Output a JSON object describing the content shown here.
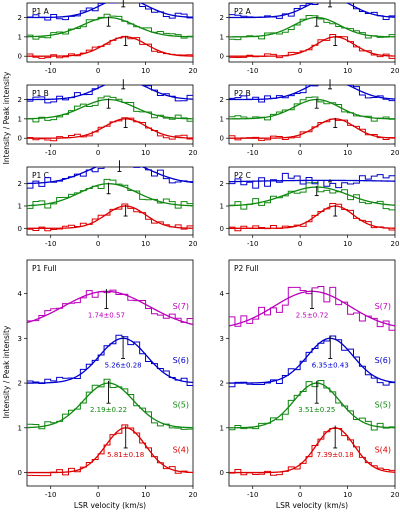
{
  "colors": {
    "S(4)": "#dd0000",
    "S(5)": "#118811",
    "S(6)": "#0000cc",
    "S(7)": "#bb00bb"
  },
  "chart_data": [
    {
      "type": "line",
      "title": "P1 A",
      "xlim": [
        -15,
        20
      ],
      "ylim": [
        -0.3,
        2.75
      ],
      "xticks": [
        -10,
        0,
        10,
        20
      ],
      "yticks": [
        0,
        1,
        2
      ],
      "xlabel": "",
      "ylabel": "",
      "series": [
        {
          "line": "S(4)",
          "offset": 0,
          "center": 5.8,
          "sigma": 4.4,
          "amp": 1.0,
          "noise": 0.14,
          "seed": 11,
          "marker": 5.8
        },
        {
          "line": "S(5)",
          "offset": 1,
          "center": 2.2,
          "sigma": 5.5,
          "amp": 1.0,
          "noise": 0.17,
          "seed": 12,
          "marker": 2.2
        },
        {
          "line": "S(6)",
          "offset": 2,
          "center": 5.3,
          "sigma": 5.0,
          "amp": 1.0,
          "noise": 0.18,
          "seed": 13,
          "marker": 5.3
        }
      ]
    },
    {
      "type": "line",
      "title": "P2 A",
      "xlim": [
        -15,
        20
      ],
      "ylim": [
        -0.3,
        2.75
      ],
      "xticks": [
        -10,
        0,
        10,
        20
      ],
      "yticks": [
        0,
        1,
        2
      ],
      "xlabel": "",
      "ylabel": "",
      "series": [
        {
          "line": "S(4)",
          "offset": 0,
          "center": 7.4,
          "sigma": 4.0,
          "amp": 1.0,
          "noise": 0.13,
          "seed": 21,
          "marker": 7.4
        },
        {
          "line": "S(5)",
          "offset": 1,
          "center": 3.5,
          "sigma": 4.8,
          "amp": 1.0,
          "noise": 0.16,
          "seed": 22,
          "marker": 3.5
        },
        {
          "line": "S(6)",
          "offset": 2,
          "center": 6.3,
          "sigma": 4.8,
          "amp": 1.0,
          "noise": 0.17,
          "seed": 23,
          "marker": 6.3
        }
      ]
    },
    {
      "type": "line",
      "title": "P1 B",
      "xlim": [
        -15,
        20
      ],
      "ylim": [
        -0.3,
        2.75
      ],
      "xticks": [
        -10,
        0,
        10,
        20
      ],
      "yticks": [
        0,
        1,
        2
      ],
      "xlabel": "",
      "ylabel": "",
      "series": [
        {
          "line": "S(4)",
          "offset": 0,
          "center": 5.8,
          "sigma": 4.4,
          "amp": 1.0,
          "noise": 0.14,
          "seed": 31,
          "marker": 5.8
        },
        {
          "line": "S(5)",
          "offset": 1,
          "center": 2.2,
          "sigma": 5.5,
          "amp": 1.0,
          "noise": 0.18,
          "seed": 32,
          "marker": 2.2
        },
        {
          "line": "S(6)",
          "offset": 2,
          "center": 5.3,
          "sigma": 5.2,
          "amp": 1.0,
          "noise": 0.2,
          "seed": 33,
          "marker": 5.3
        }
      ]
    },
    {
      "type": "line",
      "title": "P2 B",
      "xlim": [
        -15,
        20
      ],
      "ylim": [
        -0.3,
        2.75
      ],
      "xticks": [
        -10,
        0,
        10,
        20
      ],
      "yticks": [
        0,
        1,
        2
      ],
      "xlabel": "",
      "ylabel": "",
      "series": [
        {
          "line": "S(4)",
          "offset": 0,
          "center": 7.4,
          "sigma": 4.0,
          "amp": 1.0,
          "noise": 0.13,
          "seed": 41,
          "marker": 7.4
        },
        {
          "line": "S(5)",
          "offset": 1,
          "center": 3.5,
          "sigma": 4.8,
          "amp": 1.0,
          "noise": 0.17,
          "seed": 42,
          "marker": 3.5
        },
        {
          "line": "S(6)",
          "offset": 2,
          "center": 6.3,
          "sigma": 5.0,
          "amp": 1.0,
          "noise": 0.19,
          "seed": 43,
          "marker": 6.3
        }
      ]
    },
    {
      "type": "line",
      "title": "P1 C",
      "xlim": [
        -15,
        20
      ],
      "ylim": [
        -0.3,
        2.75
      ],
      "xticks": [
        -10,
        0,
        10,
        20
      ],
      "yticks": [
        0,
        1,
        2
      ],
      "xlabel": "",
      "ylabel": "",
      "series": [
        {
          "line": "S(4)",
          "offset": 0,
          "center": 5.8,
          "sigma": 4.2,
          "amp": 1.0,
          "noise": 0.13,
          "seed": 51,
          "marker": 5.8
        },
        {
          "line": "S(5)",
          "offset": 1,
          "center": 2.2,
          "sigma": 6.0,
          "amp": 1.0,
          "noise": 0.2,
          "seed": 52,
          "marker": 2.2
        },
        {
          "line": "S(6)",
          "offset": 2,
          "center": 4.5,
          "sigma": 6.5,
          "amp": 1.0,
          "noise": 0.22,
          "seed": 53,
          "marker": 4.5
        }
      ]
    },
    {
      "type": "line",
      "title": "P2 C",
      "xlim": [
        -15,
        20
      ],
      "ylim": [
        -0.3,
        2.75
      ],
      "xticks": [
        -10,
        0,
        10,
        20
      ],
      "yticks": [
        0,
        1,
        2
      ],
      "xlabel": "",
      "ylabel": "",
      "series": [
        {
          "line": "S(4)",
          "offset": 0,
          "center": 7.4,
          "sigma": 3.8,
          "amp": 1.0,
          "noise": 0.13,
          "seed": 61,
          "marker": 7.4
        },
        {
          "line": "S(5)",
          "offset": 1,
          "center": 3.5,
          "sigma": 6.5,
          "amp": 0.85,
          "noise": 0.22,
          "seed": 62,
          "marker": 3.5
        },
        {
          "line": "S(6)",
          "offset": 2,
          "center": 5.0,
          "sigma": 20.0,
          "amp": 0.15,
          "noise": 0.35,
          "seed": 63,
          "marker": 6.3
        }
      ]
    },
    {
      "type": "line",
      "title": "P1 Full",
      "xlim": [
        -15,
        20
      ],
      "ylim": [
        -0.3,
        4.75
      ],
      "xticks": [
        -10,
        0,
        10,
        20
      ],
      "yticks": [
        0,
        1,
        2,
        3,
        4
      ],
      "xlabel": "LSR velocity (km/s)",
      "ylabel": "",
      "series": [
        {
          "line": "S(4)",
          "offset": 0,
          "center": 5.81,
          "sigma": 4.2,
          "amp": 1.0,
          "noise": 0.07,
          "seed": 71,
          "marker": 5.81,
          "annotation": "5.81±0.18"
        },
        {
          "line": "S(5)",
          "offset": 1,
          "center": 2.19,
          "sigma": 5.3,
          "amp": 1.0,
          "noise": 0.09,
          "seed": 72,
          "marker": 2.19,
          "annotation": "2.19±0.22"
        },
        {
          "line": "S(6)",
          "offset": 2,
          "center": 5.26,
          "sigma": 5.0,
          "amp": 1.0,
          "noise": 0.1,
          "seed": 73,
          "marker": 5.26,
          "annotation": "5.26±0.28"
        },
        {
          "line": "S(7)",
          "offset": 3.2,
          "center": 1.74,
          "sigma": 9.0,
          "amp": 0.85,
          "noise": 0.13,
          "seed": 74,
          "marker": 1.74,
          "annotation": "1.74±0.57"
        }
      ]
    },
    {
      "type": "line",
      "title": "P2 Full",
      "xlim": [
        -15,
        20
      ],
      "ylim": [
        -0.3,
        4.75
      ],
      "xticks": [
        -10,
        0,
        10,
        20
      ],
      "yticks": [
        0,
        1,
        2,
        3,
        4
      ],
      "xlabel": "LSR velocity (km/s)",
      "ylabel": "",
      "series": [
        {
          "line": "S(4)",
          "offset": 0,
          "center": 7.39,
          "sigma": 4.0,
          "amp": 1.0,
          "noise": 0.07,
          "seed": 81,
          "marker": 7.39,
          "annotation": "7.39±0.18"
        },
        {
          "line": "S(5)",
          "offset": 1,
          "center": 3.51,
          "sigma": 4.8,
          "amp": 1.0,
          "noise": 0.09,
          "seed": 82,
          "marker": 3.51,
          "annotation": "3.51±0.25"
        },
        {
          "line": "S(6)",
          "offset": 2,
          "center": 6.35,
          "sigma": 4.8,
          "amp": 1.0,
          "noise": 0.1,
          "seed": 83,
          "marker": 6.35,
          "annotation": "6.35±0.43"
        },
        {
          "line": "S(7)",
          "offset": 3.2,
          "center": 2.5,
          "sigma": 8.0,
          "amp": 0.85,
          "noise": 0.22,
          "seed": 84,
          "marker": 2.5,
          "annotation": "2.5±0.72"
        }
      ]
    }
  ],
  "figure": {
    "ylabel_top": "Intensity / Peak intensity",
    "ylabel_bottom": "Intensity / Peak intensity"
  }
}
